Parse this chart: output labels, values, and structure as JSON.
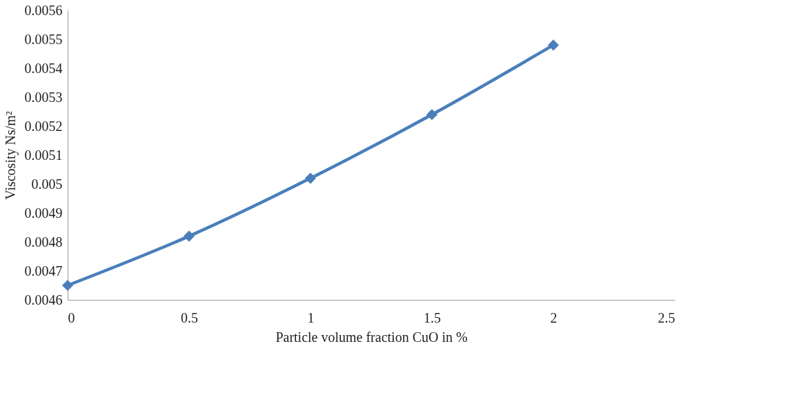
{
  "chart_data": {
    "type": "line",
    "xlabel": "Particle volume fraction CuO in %",
    "ylabel": "Viscosity Ns/m²",
    "x": [
      0,
      0.5,
      1,
      1.5,
      2
    ],
    "series": [
      {
        "color": "#4a7ebb",
        "values": [
          0.00465,
          0.00482,
          0.00502,
          0.00524,
          0.00548
        ]
      }
    ],
    "xlim": [
      0,
      2.5
    ],
    "xticks": [
      0,
      0.5,
      1,
      1.5,
      2,
      2.5
    ],
    "ylim": [
      0.0046,
      0.0056
    ],
    "yticks": [
      0.0046,
      0.0047,
      0.0048,
      0.0049,
      0.005,
      0.0051,
      0.0052,
      0.0053,
      0.0054,
      0.0055,
      0.0056
    ],
    "grid": false,
    "marker": "diamond",
    "line_style": "solid"
  }
}
